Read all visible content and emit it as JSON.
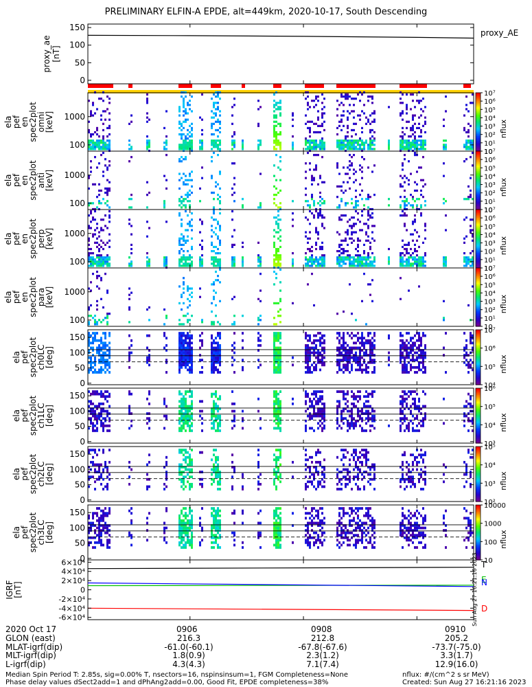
{
  "title": "PRELIMINARY ELFIN-A EPDE, alt=449km, 2020-10-17, South Descending",
  "x_range": [
    "09:04:12",
    "09:11:00"
  ],
  "time_ticks": [
    "0906",
    "0908",
    "0910"
  ],
  "panels": [
    {
      "id": "ae",
      "type": "line",
      "ylabel": [
        "proxy_ae",
        "[nT]"
      ],
      "yticks": [
        "0",
        "50",
        "100",
        "150"
      ],
      "ylim": [
        -10,
        160
      ],
      "legend": "proxy_AE",
      "series": [
        {
          "name": "proxy_AE",
          "x": [
            "09:04:12",
            "09:06:00",
            "09:08:00",
            "09:10:00",
            "09:11:00"
          ],
          "y": [
            128,
            127,
            125,
            122,
            120
          ]
        }
      ]
    },
    {
      "id": "en1",
      "type": "spectrogram",
      "ylabel": [
        "ela",
        "pef",
        "en",
        "spec2plot",
        "omni",
        "[keV]"
      ],
      "yticks": [
        "100",
        "1000"
      ],
      "colorbar_ticks": [
        "10",
        "10¹",
        "10²",
        "10³",
        "10⁴",
        "10⁵",
        "10⁶",
        "10⁷"
      ],
      "colorbar_label": "nflux"
    },
    {
      "id": "en2",
      "type": "spectrogram",
      "ylabel": [
        "ela",
        "pef",
        "en",
        "spec2plot",
        "anti",
        "[keV]"
      ],
      "yticks": [
        "100",
        "1000"
      ],
      "colorbar_ticks": [
        "10",
        "10¹",
        "10²",
        "10³",
        "10⁴",
        "10⁵",
        "10⁶",
        "10⁷"
      ],
      "colorbar_label": "nflux"
    },
    {
      "id": "en3",
      "type": "spectrogram",
      "ylabel": [
        "ela",
        "pef",
        "en",
        "spec2plot",
        "perp",
        "[keV]"
      ],
      "yticks": [
        "100",
        "1000"
      ],
      "colorbar_ticks": [
        "10",
        "10¹",
        "10²",
        "10³",
        "10⁴",
        "10⁵",
        "10⁶",
        "10⁷"
      ],
      "colorbar_label": "nflux"
    },
    {
      "id": "en4",
      "type": "spectrogram",
      "ylabel": [
        "ela",
        "pef",
        "en",
        "spec2plot",
        "para",
        "[keV]"
      ],
      "yticks": [
        "100",
        "1000"
      ],
      "colorbar_ticks": [
        "10",
        "10¹",
        "10²",
        "10³",
        "10⁴",
        "10⁵",
        "10⁶",
        "10⁷"
      ],
      "colorbar_label": "nflux"
    },
    {
      "id": "pa0",
      "type": "spectrogram",
      "ylabel": [
        "ela",
        "pef",
        "spec2plot",
        "ch0LC",
        "[deg]"
      ],
      "yticks": [
        "0",
        "50",
        "100",
        "150"
      ],
      "colorbar_ticks": [
        "10⁴",
        "10⁵",
        "10⁶",
        "10⁷"
      ],
      "colorbar_label": "nflux"
    },
    {
      "id": "pa1",
      "type": "spectrogram",
      "ylabel": [
        "ela",
        "pef",
        "spec2plot",
        "ch1LC",
        "[deg]"
      ],
      "yticks": [
        "0",
        "50",
        "100",
        "150"
      ],
      "colorbar_ticks": [
        "10³",
        "10⁴",
        "10⁵",
        "10⁶"
      ],
      "colorbar_label": "nflux"
    },
    {
      "id": "pa2",
      "type": "spectrogram",
      "ylabel": [
        "ela",
        "pef",
        "spec2plot",
        "ch2LC",
        "[deg]"
      ],
      "yticks": [
        "0",
        "50",
        "100",
        "150"
      ],
      "colorbar_ticks": [
        "10²",
        "10³",
        "10⁴",
        "10⁵"
      ],
      "colorbar_label": "nflux"
    },
    {
      "id": "pa3",
      "type": "spectrogram",
      "ylabel": [
        "ela",
        "pef",
        "spec2plot",
        "ch3LC",
        "[deg]"
      ],
      "yticks": [
        "0",
        "50",
        "100",
        "150"
      ],
      "colorbar_ticks": [
        "10",
        "100",
        "1000",
        "10000"
      ],
      "colorbar_label": "nflux"
    },
    {
      "id": "igrf",
      "type": "line",
      "ylabel": [
        "IGRF",
        "[nT]"
      ],
      "yticks": [
        "-6×10⁴",
        "-4×10⁴",
        "-2×10⁴",
        "0",
        "2×10⁴",
        "4×10⁴",
        "6×10⁴"
      ],
      "ylim": [
        -65000,
        65000
      ],
      "legend": [
        "T",
        "E",
        "N",
        "D"
      ],
      "series": [
        {
          "name": "T",
          "color": "#000000",
          "x": [
            "09:04:12",
            "09:11:00"
          ],
          "y": [
            46000,
            49000
          ]
        },
        {
          "name": "E",
          "color": "#00c000",
          "x": [
            "09:04:12",
            "09:11:00"
          ],
          "y": [
            9000,
            10000
          ]
        },
        {
          "name": "N",
          "color": "#0000ff",
          "x": [
            "09:04:12",
            "09:11:00"
          ],
          "y": [
            15000,
            7000
          ]
        },
        {
          "name": "D",
          "color": "#ff0000",
          "x": [
            "09:04:12",
            "09:11:00"
          ],
          "y": [
            -40000,
            -45000
          ]
        }
      ]
    }
  ],
  "ephemeris": {
    "date": "2020 Oct 17",
    "rows": [
      {
        "label": "GLON (east)",
        "values": [
          "216.3",
          "212.8",
          "205.2"
        ]
      },
      {
        "label": "MLAT-igrf(dip)",
        "values": [
          "-61.0(-60.1)",
          "-67.8(-67.6)",
          "-73.7(-75.0)"
        ]
      },
      {
        "label": "MLT-igrf(dip)",
        "values": [
          "1.8(0.9)",
          "2.3(1.2)",
          "3.3(1.7)"
        ]
      },
      {
        "label": "L-igrf(dip)",
        "values": [
          "4.3(4.3)",
          "7.1(7.4)",
          "12.9(16.0)"
        ]
      }
    ]
  },
  "footer": {
    "line1": "Median Spin Period T: 2.85s, sig=0.00% T, nsectors=16, nspinsinsum=1, FGM Completeness=None",
    "line2": "Phase delay values dSect2add=1 and dPhAng2add=0.00, Good Fit, EPDE completeness=38%",
    "units": "nflux: #/(cm^2 s sr MeV)",
    "created": "Created: Sun Aug 27 16:21:16 2023",
    "vertical_stamp": "Sun Aug 27 16:21:16 2023"
  },
  "colors": {
    "bar_red": "#ff0000",
    "bar_yellow": "#ffd200"
  }
}
